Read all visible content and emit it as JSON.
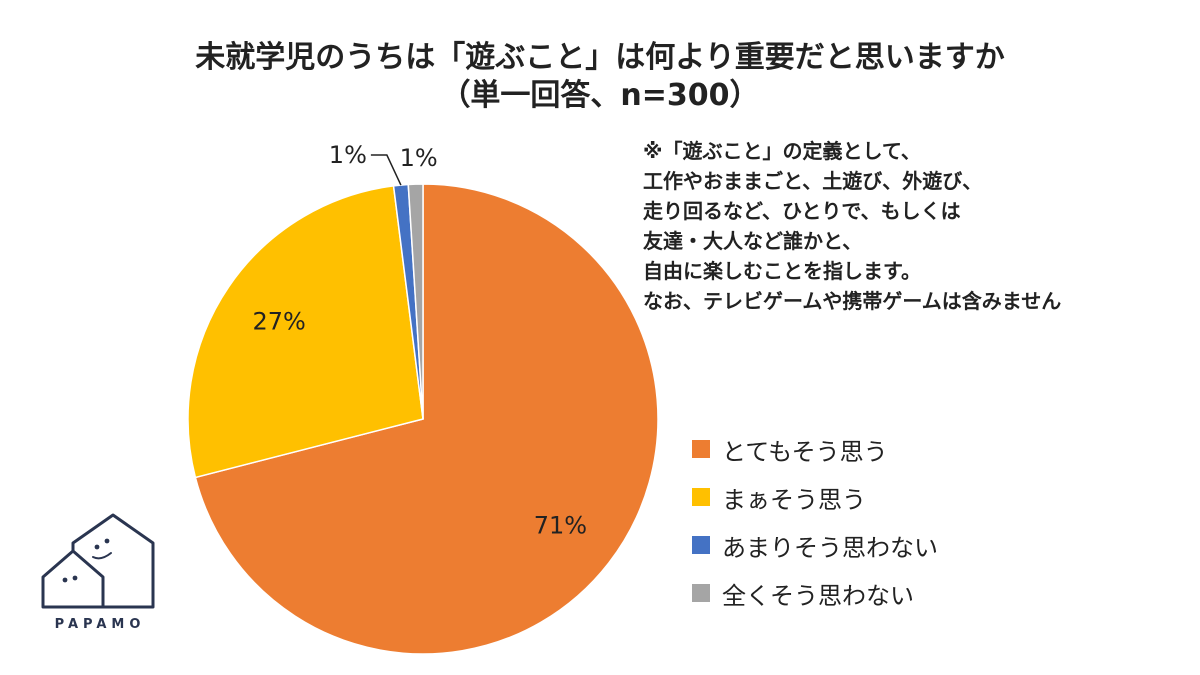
{
  "title_line1": "未就学児のうちは「遊ぶこと」は何より重要だと思いますか",
  "title_line2": "（単一回答、n=300）",
  "note_lines": [
    "※「遊ぶこと」の定義として、",
    "工作やおままごと、土遊び、外遊び、",
    "走り回るなど、ひとりで、もしくは",
    "友達・大人など誰かと、",
    "自由に楽しむことを指します。",
    "なお、テレビゲームや携帯ゲームは含みません"
  ],
  "logo_text": "PAPAMO",
  "chart_data": {
    "type": "pie",
    "title": "未就学児のうちは「遊ぶこと」は何より重要だと思いますか（単一回答、n=300）",
    "legend_position": "right",
    "slices": [
      {
        "label": "とてもそう思う",
        "value": 71,
        "display": "71%",
        "color": "#ED7D31"
      },
      {
        "label": "まぁそう思う",
        "value": 27,
        "display": "27%",
        "color": "#FFC000"
      },
      {
        "label": "あまりそう思わない",
        "value": 1,
        "display": "1%",
        "color": "#4472C4"
      },
      {
        "label": "全くそう思わない",
        "value": 1,
        "display": "1%",
        "color": "#A5A5A5"
      }
    ]
  }
}
